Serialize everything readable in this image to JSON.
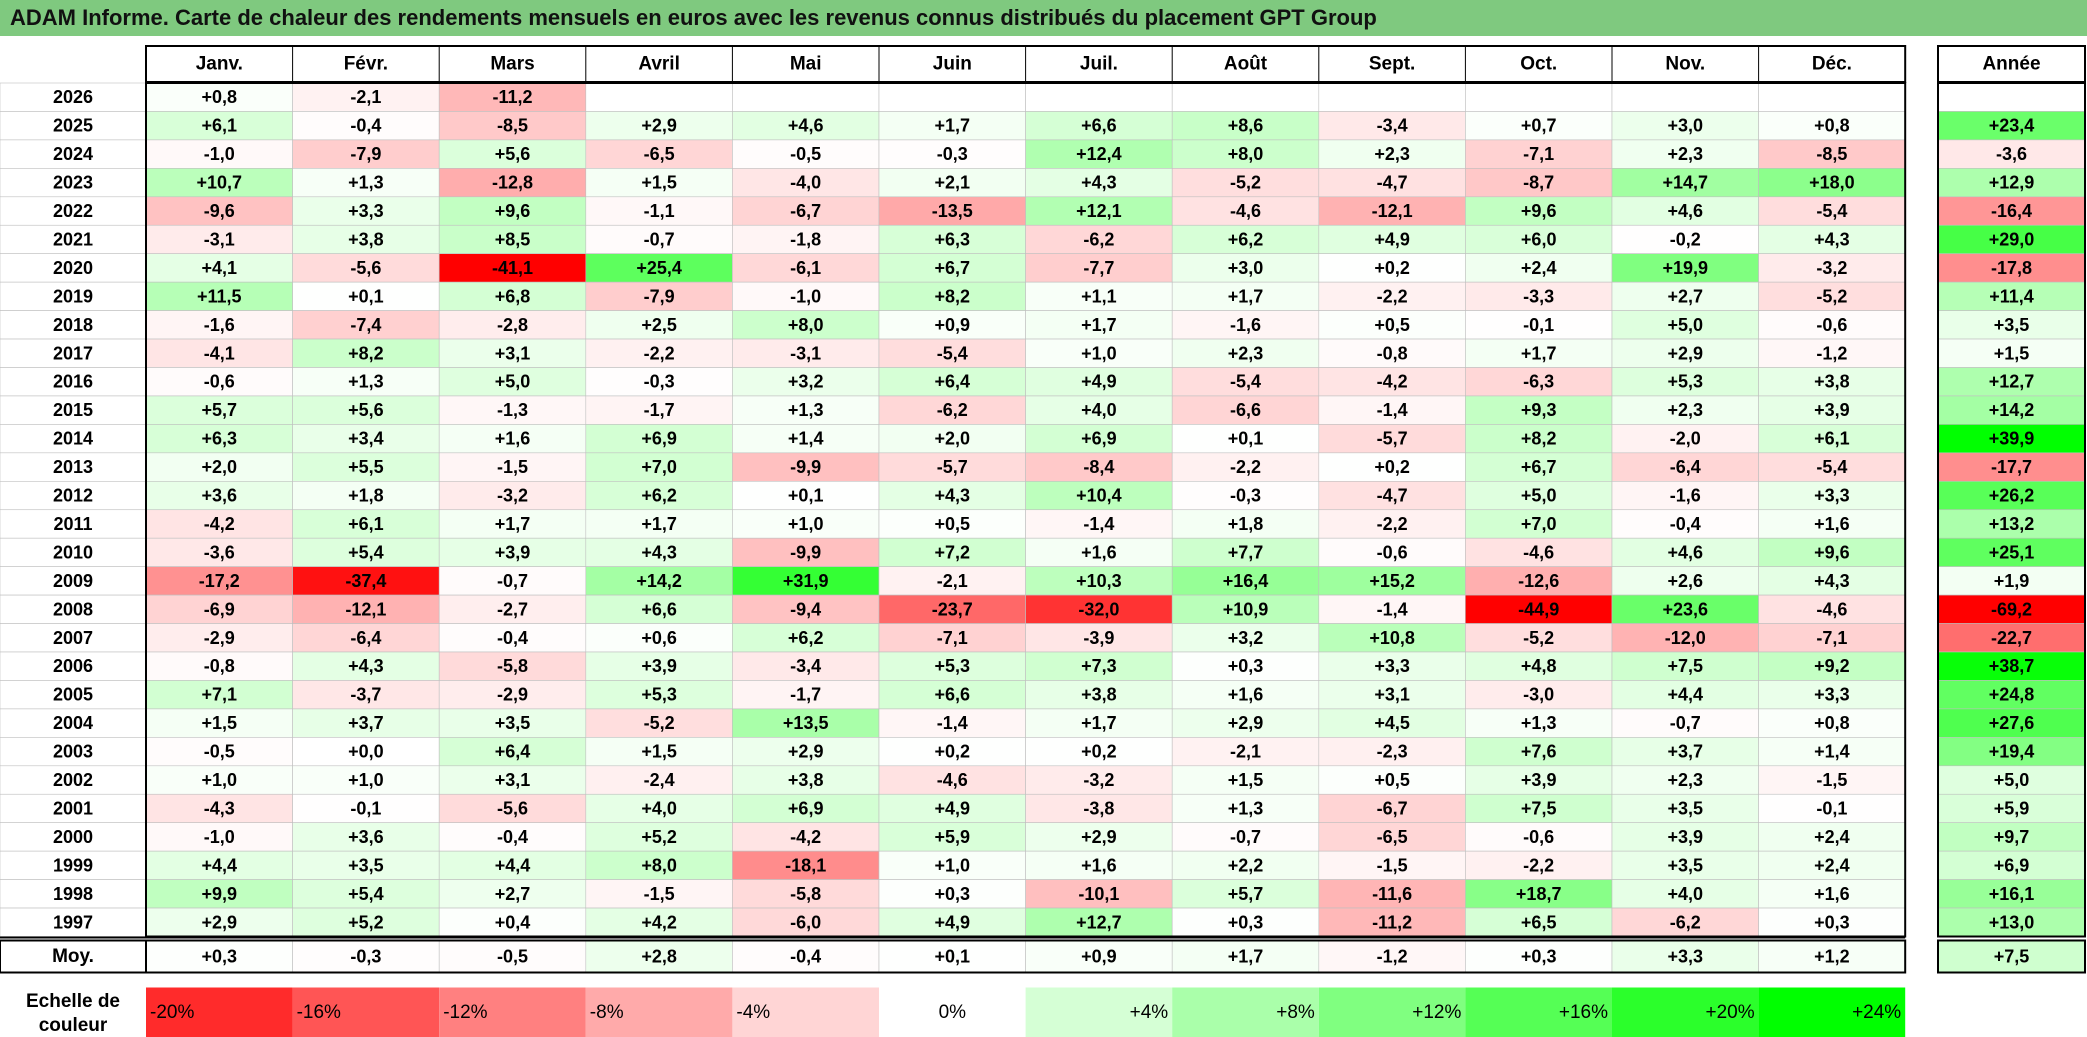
{
  "title": "ADAM Informe. Carte de chaleur des rendements mensuels en euros avec les revenus connus distribués du placement GPT Group",
  "chart_data": {
    "type": "heatmap",
    "months": [
      "Janv.",
      "Févr.",
      "Mars",
      "Avril",
      "Mai",
      "Juin",
      "Juil.",
      "Août",
      "Sept.",
      "Oct.",
      "Nov.",
      "Déc."
    ],
    "year_header": "Année",
    "rows": [
      {
        "year": "2026",
        "values": [
          "+0,8",
          "-2,1",
          "-11,2",
          "",
          "",
          "",
          "",
          "",
          "",
          "",
          "",
          ""
        ],
        "annual": ""
      },
      {
        "year": "2025",
        "values": [
          "+6,1",
          "-0,4",
          "-8,5",
          "+2,9",
          "+4,6",
          "+1,7",
          "+6,6",
          "+8,6",
          "-3,4",
          "+0,7",
          "+3,0",
          "+0,8"
        ],
        "annual": "+23,4"
      },
      {
        "year": "2024",
        "values": [
          "-1,0",
          "-7,9",
          "+5,6",
          "-6,5",
          "-0,5",
          "-0,3",
          "+12,4",
          "+8,0",
          "+2,3",
          "-7,1",
          "+2,3",
          "-8,5"
        ],
        "annual": "-3,6"
      },
      {
        "year": "2023",
        "values": [
          "+10,7",
          "+1,3",
          "-12,8",
          "+1,5",
          "-4,0",
          "+2,1",
          "+4,3",
          "-5,2",
          "-4,7",
          "-8,7",
          "+14,7",
          "+18,0"
        ],
        "annual": "+12,9"
      },
      {
        "year": "2022",
        "values": [
          "-9,6",
          "+3,3",
          "+9,6",
          "-1,1",
          "-6,7",
          "-13,5",
          "+12,1",
          "-4,6",
          "-12,1",
          "+9,6",
          "+4,6",
          "-5,4"
        ],
        "annual": "-16,4"
      },
      {
        "year": "2021",
        "values": [
          "-3,1",
          "+3,8",
          "+8,5",
          "-0,7",
          "-1,8",
          "+6,3",
          "-6,2",
          "+6,2",
          "+4,9",
          "+6,0",
          "-0,2",
          "+4,3"
        ],
        "annual": "+29,0"
      },
      {
        "year": "2020",
        "values": [
          "+4,1",
          "-5,6",
          "-41,1",
          "+25,4",
          "-6,1",
          "+6,7",
          "-7,7",
          "+3,0",
          "+0,2",
          "+2,4",
          "+19,9",
          "-3,2"
        ],
        "annual": "-17,8"
      },
      {
        "year": "2019",
        "values": [
          "+11,5",
          "+0,1",
          "+6,8",
          "-7,9",
          "-1,0",
          "+8,2",
          "+1,1",
          "+1,7",
          "-2,2",
          "-3,3",
          "+2,7",
          "-5,2"
        ],
        "annual": "+11,4"
      },
      {
        "year": "2018",
        "values": [
          "-1,6",
          "-7,4",
          "-2,8",
          "+2,5",
          "+8,0",
          "+0,9",
          "+1,7",
          "-1,6",
          "+0,5",
          "-0,1",
          "+5,0",
          "-0,6"
        ],
        "annual": "+3,5"
      },
      {
        "year": "2017",
        "values": [
          "-4,1",
          "+8,2",
          "+3,1",
          "-2,2",
          "-3,1",
          "-5,4",
          "+1,0",
          "+2,3",
          "-0,8",
          "+1,7",
          "+2,9",
          "-1,2"
        ],
        "annual": "+1,5"
      },
      {
        "year": "2016",
        "values": [
          "-0,6",
          "+1,3",
          "+5,0",
          "-0,3",
          "+3,2",
          "+6,4",
          "+4,9",
          "-5,4",
          "-4,2",
          "-6,3",
          "+5,3",
          "+3,8"
        ],
        "annual": "+12,7"
      },
      {
        "year": "2015",
        "values": [
          "+5,7",
          "+5,6",
          "-1,3",
          "-1,7",
          "+1,3",
          "-6,2",
          "+4,0",
          "-6,6",
          "-1,4",
          "+9,3",
          "+2,3",
          "+3,9"
        ],
        "annual": "+14,2"
      },
      {
        "year": "2014",
        "values": [
          "+6,3",
          "+3,4",
          "+1,6",
          "+6,9",
          "+1,4",
          "+2,0",
          "+6,9",
          "+0,1",
          "-5,7",
          "+8,2",
          "-2,0",
          "+6,1"
        ],
        "annual": "+39,9"
      },
      {
        "year": "2013",
        "values": [
          "+2,0",
          "+5,5",
          "-1,5",
          "+7,0",
          "-9,9",
          "-5,7",
          "-8,4",
          "-2,2",
          "+0,2",
          "+6,7",
          "-6,4",
          "-5,4"
        ],
        "annual": "-17,7"
      },
      {
        "year": "2012",
        "values": [
          "+3,6",
          "+1,8",
          "-3,2",
          "+6,2",
          "+0,1",
          "+4,3",
          "+10,4",
          "-0,3",
          "-4,7",
          "+5,0",
          "-1,6",
          "+3,3"
        ],
        "annual": "+26,2"
      },
      {
        "year": "2011",
        "values": [
          "-4,2",
          "+6,1",
          "+1,7",
          "+1,7",
          "+1,0",
          "+0,5",
          "-1,4",
          "+1,8",
          "-2,2",
          "+7,0",
          "-0,4",
          "+1,6"
        ],
        "annual": "+13,2"
      },
      {
        "year": "2010",
        "values": [
          "-3,6",
          "+5,4",
          "+3,9",
          "+4,3",
          "-9,9",
          "+7,2",
          "+1,6",
          "+7,7",
          "-0,6",
          "-4,6",
          "+4,6",
          "+9,6"
        ],
        "annual": "+25,1"
      },
      {
        "year": "2009",
        "values": [
          "-17,2",
          "-37,4",
          "-0,7",
          "+14,2",
          "+31,9",
          "-2,1",
          "+10,3",
          "+16,4",
          "+15,2",
          "-12,6",
          "+2,6",
          "+4,3"
        ],
        "annual": "+1,9"
      },
      {
        "year": "2008",
        "values": [
          "-6,9",
          "-12,1",
          "-2,7",
          "+6,6",
          "-9,4",
          "-23,7",
          "-32,0",
          "+10,9",
          "-1,4",
          "-44,9",
          "+23,6",
          "-4,6"
        ],
        "annual": "-69,2"
      },
      {
        "year": "2007",
        "values": [
          "-2,9",
          "-6,4",
          "-0,4",
          "+0,6",
          "+6,2",
          "-7,1",
          "-3,9",
          "+3,2",
          "+10,8",
          "-5,2",
          "-12,0",
          "-7,1"
        ],
        "annual": "-22,7"
      },
      {
        "year": "2006",
        "values": [
          "-0,8",
          "+4,3",
          "-5,8",
          "+3,9",
          "-3,4",
          "+5,3",
          "+7,3",
          "+0,3",
          "+3,3",
          "+4,8",
          "+7,5",
          "+9,2"
        ],
        "annual": "+38,7"
      },
      {
        "year": "2005",
        "values": [
          "+7,1",
          "-3,7",
          "-2,9",
          "+5,3",
          "-1,7",
          "+6,6",
          "+3,8",
          "+1,6",
          "+3,1",
          "-3,0",
          "+4,4",
          "+3,3"
        ],
        "annual": "+24,8"
      },
      {
        "year": "2004",
        "values": [
          "+1,5",
          "+3,7",
          "+3,5",
          "-5,2",
          "+13,5",
          "-1,4",
          "+1,7",
          "+2,9",
          "+4,5",
          "+1,3",
          "-0,7",
          "+0,8"
        ],
        "annual": "+27,6"
      },
      {
        "year": "2003",
        "values": [
          "-0,5",
          "+0,0",
          "+6,4",
          "+1,5",
          "+2,9",
          "+0,2",
          "+0,2",
          "-2,1",
          "-2,3",
          "+7,6",
          "+3,7",
          "+1,4"
        ],
        "annual": "+19,4"
      },
      {
        "year": "2002",
        "values": [
          "+1,0",
          "+1,0",
          "+3,1",
          "-2,4",
          "+3,8",
          "-4,6",
          "-3,2",
          "+1,5",
          "+0,5",
          "+3,9",
          "+2,3",
          "-1,5"
        ],
        "annual": "+5,0"
      },
      {
        "year": "2001",
        "values": [
          "-4,3",
          "-0,1",
          "-5,6",
          "+4,0",
          "+6,9",
          "+4,9",
          "-3,8",
          "+1,3",
          "-6,7",
          "+7,5",
          "+3,5",
          "-0,1"
        ],
        "annual": "+5,9"
      },
      {
        "year": "2000",
        "values": [
          "-1,0",
          "+3,6",
          "-0,4",
          "+5,2",
          "-4,2",
          "+5,9",
          "+2,9",
          "-0,7",
          "-6,5",
          "-0,6",
          "+3,9",
          "+2,4"
        ],
        "annual": "+9,7"
      },
      {
        "year": "1999",
        "values": [
          "+4,4",
          "+3,5",
          "+4,4",
          "+8,0",
          "-18,1",
          "+1,0",
          "+1,6",
          "+2,2",
          "-1,5",
          "-2,2",
          "+3,5",
          "+2,4"
        ],
        "annual": "+6,9"
      },
      {
        "year": "1998",
        "values": [
          "+9,9",
          "+5,4",
          "+2,7",
          "-1,5",
          "-5,8",
          "+0,3",
          "-10,1",
          "+5,7",
          "-11,6",
          "+18,7",
          "+4,0",
          "+1,6"
        ],
        "annual": "+16,1"
      },
      {
        "year": "1997",
        "values": [
          "+2,9",
          "+5,2",
          "+0,4",
          "+4,2",
          "-6,0",
          "+4,9",
          "+12,7",
          "+0,3",
          "-11,2",
          "+6,5",
          "-6,2",
          "+0,3"
        ],
        "annual": "+13,0"
      }
    ],
    "average": {
      "label": "Moy.",
      "values": [
        "+0,3",
        "-0,3",
        "-0,5",
        "+2,8",
        "-0,4",
        "+0,1",
        "+0,9",
        "+1,7",
        "-1,2",
        "+0,3",
        "+3,3",
        "+1,2"
      ],
      "annual": "+7,5"
    },
    "scale": {
      "label_line1": "Echelle de",
      "label_line2": "couleur",
      "steps": [
        "-20%",
        "-16%",
        "-12%",
        "-8%",
        "-4%",
        "0%",
        "+4%",
        "+8%",
        "+12%",
        "+16%",
        "+20%",
        "+24%"
      ]
    },
    "colors": {
      "negative_max": "#ff0000",
      "positive_max": "#00ff00",
      "neutral": "#ffffff",
      "title_bar": "#7fc97f"
    }
  }
}
